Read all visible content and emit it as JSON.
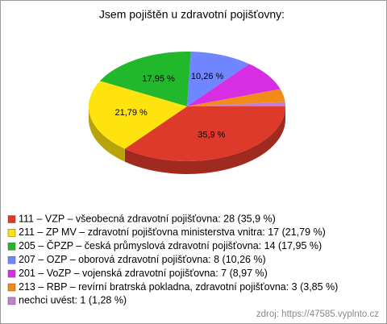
{
  "chart_data": {
    "type": "pie",
    "title": "Jsem pojištěn u zdravotní pojišťovny:",
    "categories": [
      "111 – VZP – všeobecná zdravotní pojišťovna: 28 (35,9 %)",
      "211 – ZP MV – zdravotní pojišťovna ministerstva vnitra: 17 (21,79 %)",
      "205 – ČPZP – česká průmyslová zdravotní pojišťovna: 14 (17,95 %)",
      "207 – OZP – oborová zdravotní pojišťovna: 8 (10,26 %)",
      "201 – VoZP – vojenská zdravotní pojišťovna: 7 (8,97 %)",
      "213 – RBP – revírní bratrská pokladna, zdravotní pojišťovna: 3 (3,85 %)",
      "nechci uvést: 1 (1,28 %)"
    ],
    "values": [
      35.9,
      21.79,
      17.95,
      10.26,
      8.97,
      3.85,
      1.28
    ],
    "value_labels": [
      "35,9 %",
      "21,79 %",
      "17,95 %",
      "10,26 %",
      null,
      null,
      null
    ],
    "colors": [
      "#de3a2b",
      "#ffe30f",
      "#22b82b",
      "#6f86ff",
      "#d72ee3",
      "#f28b18",
      "#c27fd4"
    ],
    "source": "zdroj: https://47585.vyplnto.cz"
  }
}
